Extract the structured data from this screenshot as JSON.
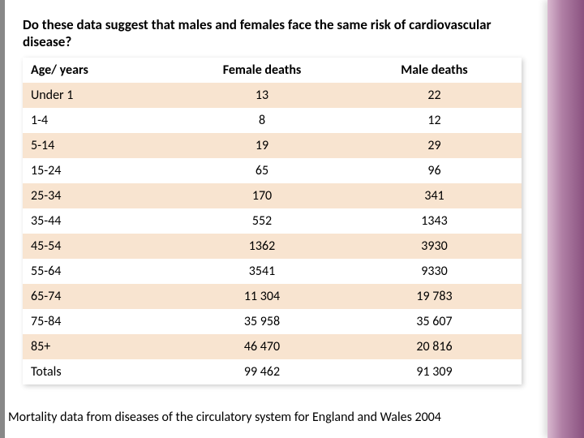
{
  "question": "Do these data suggest that males and females  face the same risk of cardiovascular disease?",
  "table": {
    "type": "table",
    "header_background": "#ffffff",
    "row_odd_background": "#f8e4d0",
    "row_even_background": "#ffffff",
    "columns": [
      "Age/ years",
      "Female deaths",
      "Male deaths"
    ],
    "rows": [
      [
        "Under 1",
        "13",
        "22"
      ],
      [
        "1-4",
        "8",
        "12"
      ],
      [
        "5-14",
        "19",
        "29"
      ],
      [
        "15-24",
        "65",
        "96"
      ],
      [
        "25-34",
        "170",
        "341"
      ],
      [
        "35-44",
        "552",
        "1343"
      ],
      [
        "45-54",
        "1362",
        "3930"
      ],
      [
        "55-64",
        "3541",
        "9330"
      ],
      [
        "65-74",
        "11 304",
        "19 783"
      ],
      [
        "75-84",
        "35 958",
        "35 607"
      ],
      [
        "85+",
        "46 470",
        "20 816"
      ],
      [
        "Totals",
        "99 462",
        "91 309"
      ]
    ]
  },
  "caption": "Mortality data from diseases of the circulatory system for England and Wales 2004",
  "colors": {
    "left_strip": "#888888",
    "right_gradient_start": "#d8b8cf",
    "right_gradient_end": "#8a5280",
    "text": "#000000"
  }
}
